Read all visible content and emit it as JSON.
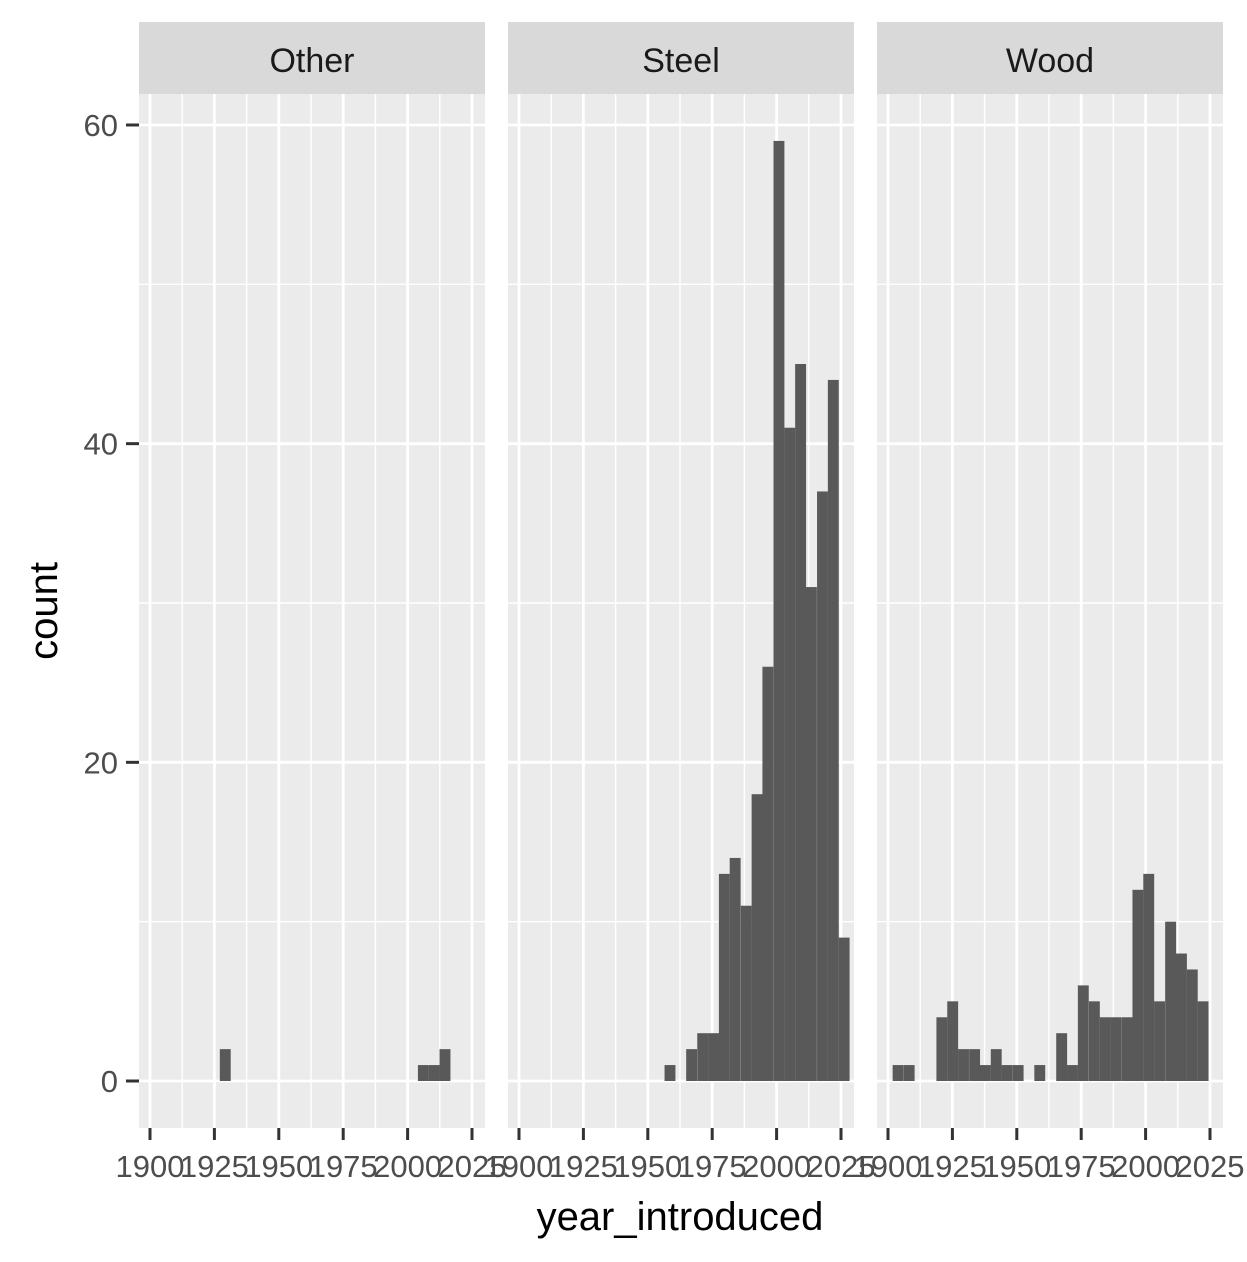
{
  "chart_data": {
    "type": "histogram-faceted",
    "xlabel": "year_introduced",
    "ylabel": "count",
    "xlim": [
      1895,
      2030
    ],
    "ylim": [
      -3,
      63
    ],
    "x_breaks": [
      1900,
      1925,
      1950,
      1975,
      2000,
      2025
    ],
    "x_break_labels": [
      "1900",
      "1925",
      "1950",
      "1975",
      "2000",
      "2025"
    ],
    "y_breaks": [
      0,
      20,
      40,
      60
    ],
    "y_break_labels": [
      "0",
      "20",
      "40",
      "60"
    ],
    "bin_width": 4.23,
    "bar_color": "#595959",
    "panel_background": "#ebebeb",
    "strip_background": "#d9d9d9",
    "grid_color": "#ffffff",
    "panels": [
      {
        "label": "Other",
        "bins": [
          {
            "x_start": 1927.1,
            "count": 2
          },
          {
            "x_start": 2004.0,
            "count": 1
          },
          {
            "x_start": 2008.2,
            "count": 1
          },
          {
            "x_start": 2012.4,
            "count": 2
          }
        ]
      },
      {
        "label": "Steel",
        "bins": [
          {
            "x_start": 1956.5,
            "count": 1
          },
          {
            "x_start": 1964.9,
            "count": 2
          },
          {
            "x_start": 1969.2,
            "count": 3
          },
          {
            "x_start": 1973.4,
            "count": 3
          },
          {
            "x_start": 1977.6,
            "count": 13
          },
          {
            "x_start": 1981.8,
            "count": 14
          },
          {
            "x_start": 1986.1,
            "count": 11
          },
          {
            "x_start": 1990.3,
            "count": 18
          },
          {
            "x_start": 1994.5,
            "count": 26
          },
          {
            "x_start": 1998.8,
            "count": 59
          },
          {
            "x_start": 2003.0,
            "count": 41
          },
          {
            "x_start": 2007.2,
            "count": 45
          },
          {
            "x_start": 2011.4,
            "count": 31
          },
          {
            "x_start": 2015.7,
            "count": 37
          },
          {
            "x_start": 2019.9,
            "count": 44
          },
          {
            "x_start": 2024.1,
            "count": 9
          }
        ]
      },
      {
        "label": "Wood",
        "bins": [
          {
            "x_start": 1901.8,
            "count": 1
          },
          {
            "x_start": 1906.1,
            "count": 1
          },
          {
            "x_start": 1918.8,
            "count": 4
          },
          {
            "x_start": 1923.0,
            "count": 5
          },
          {
            "x_start": 1927.2,
            "count": 2
          },
          {
            "x_start": 1931.5,
            "count": 2
          },
          {
            "x_start": 1935.7,
            "count": 1
          },
          {
            "x_start": 1939.9,
            "count": 2
          },
          {
            "x_start": 1944.1,
            "count": 1
          },
          {
            "x_start": 1948.4,
            "count": 1
          },
          {
            "x_start": 1956.8,
            "count": 1
          },
          {
            "x_start": 1965.3,
            "count": 3
          },
          {
            "x_start": 1969.5,
            "count": 1
          },
          {
            "x_start": 1973.7,
            "count": 6
          },
          {
            "x_start": 1978.0,
            "count": 5
          },
          {
            "x_start": 1982.2,
            "count": 4
          },
          {
            "x_start": 1986.4,
            "count": 4
          },
          {
            "x_start": 1990.7,
            "count": 4
          },
          {
            "x_start": 1994.9,
            "count": 12
          },
          {
            "x_start": 1999.1,
            "count": 13
          },
          {
            "x_start": 2003.3,
            "count": 5
          },
          {
            "x_start": 2007.6,
            "count": 10
          },
          {
            "x_start": 2011.8,
            "count": 8
          },
          {
            "x_start": 2016.0,
            "count": 7
          },
          {
            "x_start": 2020.2,
            "count": 5
          }
        ]
      }
    ]
  }
}
